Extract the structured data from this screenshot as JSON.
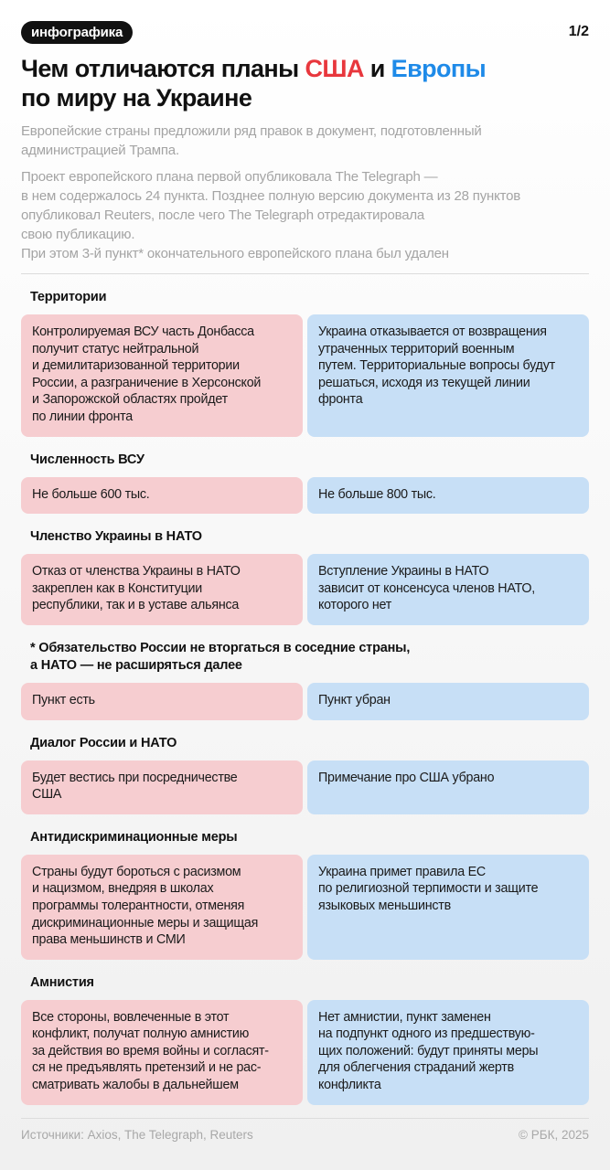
{
  "header": {
    "badge": "инфографика",
    "page_indicator": "1/2",
    "title_part1": "Чем отличаются планы ",
    "title_us": "США",
    "title_part2": " и ",
    "title_eu": "Европы",
    "title_part3": "по миру на Украине",
    "lead1": "Европейские страны предложили ряд правок в документ, подготовленный\nадминистрацией Трампа.",
    "lead2": "Проект европейского плана первой опубликовала The Telegraph —\nв нем содержалось 24 пункта. Позднее полную версию документа из 28 пунктов\nопубликовал Reuters, после чего The Telegraph отредактировала\nсвою публикацию.\nПри этом 3-й пункт* окончательного европейского плана был удален"
  },
  "colors": {
    "us": "#e8373d",
    "eu": "#1e8ae8",
    "us_card": "#f6cdd0",
    "eu_card": "#c7dff6"
  },
  "sections": [
    {
      "title": "Территории",
      "us": "Контролируемая ВСУ часть Донбасса\nполучит статус нейтральной\nи демилитаризованной территории\nРоссии, а разграничение в Херсонской\nи Запорожской областях пройдет\nпо линии фронта",
      "eu": "Украина отказывается от возвращения\nутраченных территорий военным\nпутем. Территориальные вопросы будут\nрешаться, исходя из текущей линии\nфронта"
    },
    {
      "title": "Численность ВСУ",
      "us": "Не больше 600 тыс.",
      "eu": "Не больше 800 тыс."
    },
    {
      "title": "Членство Украины в НАТО",
      "us": "Отказ от членства Украины в НАТО\nзакреплен как в Конституции\nреспублики, так и в уставе альянса",
      "eu": "Вступление Украины в НАТО\nзависит от консенсуса членов НАТО,\nкоторого нет"
    },
    {
      "title": "* Обязательство России не вторгаться в соседние страны,\nа НАТО — не расширяться далее",
      "us": "Пункт есть",
      "eu": "Пункт убран"
    },
    {
      "title": "Диалог России и НАТО",
      "us": "Будет вестись при посредничестве\nСША",
      "eu": "Примечание про США убрано"
    },
    {
      "title": "Антидискриминационные меры",
      "us": "Страны будут бороться с расизмом\nи нацизмом, внедряя в школах\nпрограммы толерантности, отменяя\nдискриминационные меры и защищая\nправа меньшинств и СМИ",
      "eu": "Украина примет правила ЕС\nпо религиозной терпимости и защите\nязыковых меньшинств"
    },
    {
      "title": "Амнистия",
      "us": "Все стороны, вовлеченные в этот\nконфликт, получат полную амнистию\nза действия во время войны и согласят-\nся не предъявлять претензий и не рас-\nсматривать жалобы в дальнейшем",
      "eu": "Нет амнистии, пункт заменен\nна подпункт одного из предшествую-\nщих положений: будут приняты меры\nдля облегчения страданий жертв\nконфликта"
    }
  ],
  "footer": {
    "sources": "Источники: Axios, The Telegraph, Reuters",
    "copyright": "© РБК, 2025"
  }
}
